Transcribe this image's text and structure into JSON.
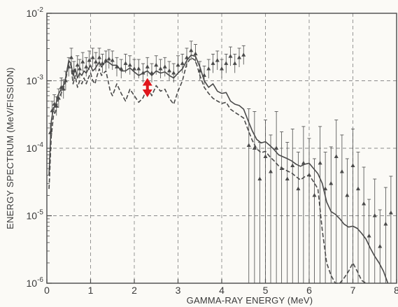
{
  "chart_data": {
    "type": "line",
    "title": "",
    "xlabel": "GAMMA-RAY ENERGY (MeV)",
    "ylabel": "ENERGY SPECTRUM (MeV/FISSION)",
    "xlim": [
      0,
      8
    ],
    "ylim": [
      1e-06,
      0.01
    ],
    "yscale": "log",
    "grid": true,
    "x_ticks": [
      "0",
      "1",
      "2",
      "3",
      "4",
      "5",
      "6",
      "7",
      "8"
    ],
    "y_ticks": [
      {
        "base": "10",
        "exp": "-6",
        "value": 1e-06
      },
      {
        "base": "10",
        "exp": "-5",
        "value": 1e-05
      },
      {
        "base": "10",
        "exp": "-4",
        "value": 0.0001
      },
      {
        "base": "10",
        "exp": "-3",
        "value": 0.001
      },
      {
        "base": "10",
        "exp": "-2",
        "value": 0.01
      }
    ],
    "colors": {
      "axis": "#4a4a4a",
      "grid": "#8a8a8a",
      "series": "#4a4a4a",
      "arrow": "#e0161c"
    },
    "series": [
      {
        "style": "solid",
        "x": [
          0.05,
          0.1,
          0.15,
          0.2,
          0.25,
          0.3,
          0.35,
          0.4,
          0.45,
          0.5,
          0.55,
          0.6,
          0.65,
          0.7,
          0.75,
          0.8,
          0.85,
          0.9,
          0.95,
          1.0,
          1.05,
          1.1,
          1.15,
          1.2,
          1.25,
          1.3,
          1.35,
          1.4,
          1.45,
          1.5,
          1.6,
          1.7,
          1.8,
          1.9,
          2.0,
          2.1,
          2.2,
          2.3,
          2.4,
          2.5,
          2.6,
          2.7,
          2.8,
          2.9,
          3.0,
          3.1,
          3.2,
          3.3,
          3.4,
          3.5,
          3.6,
          3.7,
          3.8,
          3.9,
          4.0,
          4.1,
          4.2,
          4.3,
          4.4,
          4.5,
          4.6,
          4.7,
          4.8,
          4.9,
          5.0,
          5.1,
          5.2,
          5.3,
          5.4,
          5.5,
          5.6,
          5.7,
          5.8,
          5.9,
          6.0,
          6.1,
          6.2,
          6.3,
          6.4,
          6.5,
          6.6,
          6.7,
          6.8,
          6.9,
          7.0,
          7.1,
          7.2,
          7.3,
          7.4,
          7.5,
          7.6,
          7.7,
          7.8
        ],
        "y": [
          4e-05,
          0.00025,
          0.0004,
          0.00043,
          0.0006,
          0.0007,
          0.0008,
          0.0009,
          0.0013,
          0.002,
          0.0018,
          0.0012,
          0.0015,
          0.0011,
          0.0013,
          0.0012,
          0.0014,
          0.0013,
          0.0015,
          0.0017,
          0.0014,
          0.0015,
          0.0017,
          0.0019,
          0.0016,
          0.0018,
          0.0019,
          0.0019,
          0.0018,
          0.0017,
          0.0017,
          0.0014,
          0.0014,
          0.00155,
          0.00135,
          0.0012,
          0.0013,
          0.0014,
          0.0012,
          0.0014,
          0.0013,
          0.00135,
          0.0012,
          0.0011,
          0.0013,
          0.0015,
          0.002,
          0.0024,
          0.0023,
          0.0016,
          0.001,
          0.0008,
          0.0009,
          0.0007,
          0.00065,
          0.00067,
          0.0005,
          0.00045,
          0.00043,
          0.00038,
          0.00026,
          0.00018,
          0.000135,
          0.00012,
          0.000125,
          0.00011,
          9.5e-05,
          8e-05,
          7.5e-05,
          7e-05,
          6.5e-05,
          5.8e-05,
          5.4e-05,
          5.8e-05,
          6e-05,
          5e-05,
          4.2e-05,
          3e-05,
          1.6e-05,
          1.15e-05,
          1.05e-05,
          9e-06,
          7.5e-06,
          6.8e-06,
          7e-06,
          6.5e-06,
          5.5e-06,
          4.5e-06,
          3.3e-06,
          2.5e-06,
          2e-06,
          1.5e-06,
          1e-06
        ]
      },
      {
        "style": "dashed",
        "x": [
          0.05,
          0.1,
          0.15,
          0.2,
          0.25,
          0.3,
          0.35,
          0.4,
          0.45,
          0.5,
          0.55,
          0.6,
          0.65,
          0.7,
          0.75,
          0.8,
          0.85,
          0.9,
          0.95,
          1.0,
          1.05,
          1.1,
          1.15,
          1.2,
          1.25,
          1.3,
          1.35,
          1.4,
          1.45,
          1.5,
          1.6,
          1.7,
          1.8,
          1.9,
          2.0,
          2.1,
          2.2,
          2.3,
          2.4,
          2.5,
          2.6,
          2.7,
          2.8,
          2.9,
          3.0,
          3.1,
          3.2,
          3.3,
          3.4,
          3.5,
          3.6,
          3.7,
          3.8,
          3.9,
          4.0,
          4.1,
          4.2,
          4.3,
          4.4,
          4.5,
          4.6,
          4.7,
          4.8,
          4.9,
          5.0,
          5.1,
          5.2,
          5.3,
          5.4,
          5.5,
          5.6,
          5.7,
          5.8,
          5.9,
          6.0,
          6.1,
          6.2,
          6.3,
          6.4,
          6.5,
          6.6,
          6.7,
          6.8,
          6.9,
          7.0,
          7.1,
          7.2,
          7.3
        ],
        "y": [
          2.5e-05,
          0.00015,
          0.0003,
          0.00035,
          0.0005,
          0.0006,
          0.0007,
          0.00085,
          0.0012,
          0.0019,
          0.0017,
          0.0009,
          0.0012,
          0.0008,
          0.001,
          0.0009,
          0.0011,
          0.0009,
          0.0011,
          0.0013,
          0.001,
          0.0009,
          0.0012,
          0.0015,
          0.0012,
          0.0013,
          0.0014,
          0.001,
          0.0007,
          0.0006,
          0.0009,
          0.00065,
          0.0005,
          0.00075,
          0.0006,
          0.00048,
          0.00056,
          0.0008,
          0.0006,
          0.00085,
          0.0007,
          0.00075,
          0.00055,
          0.00045,
          0.0007,
          0.001,
          0.0018,
          0.0022,
          0.002,
          0.0012,
          0.0008,
          0.00065,
          0.00055,
          0.0005,
          0.00046,
          0.00048,
          0.00038,
          0.00034,
          0.00031,
          0.00028,
          0.00019,
          0.00013,
          9.8e-05,
          8.6e-05,
          9e-05,
          7.5e-05,
          6.5e-05,
          5.5e-05,
          5e-05,
          4.6e-05,
          4.3e-05,
          3.8e-05,
          3.4e-05,
          3.8e-05,
          4e-05,
          3.2e-05,
          2.5e-05,
          6e-06,
          2e-06,
          1.3e-06,
          1e-06,
          1e-06,
          1.2e-06,
          1.5e-06,
          2e-06,
          1.5e-06,
          1.1e-06,
          1e-06
        ]
      },
      {
        "style": "points",
        "x": [
          0.08,
          0.12,
          0.17,
          0.22,
          0.27,
          0.33,
          0.38,
          0.43,
          0.5,
          0.56,
          0.62,
          0.7,
          0.75,
          0.82,
          0.9,
          0.97,
          1.05,
          1.12,
          1.2,
          1.27,
          1.35,
          1.42,
          1.5,
          1.6,
          1.7,
          1.8,
          1.9,
          2.0,
          2.1,
          2.2,
          2.3,
          2.4,
          2.5,
          2.6,
          2.7,
          2.8,
          2.9,
          3.0,
          3.1,
          3.2,
          3.3,
          3.4,
          3.5,
          3.6,
          3.7,
          3.8,
          3.9,
          4.0,
          4.1,
          4.2,
          4.3,
          4.4,
          4.5,
          4.62,
          4.75,
          4.87,
          5.0,
          5.12,
          5.25,
          5.37,
          5.5,
          5.62,
          5.75,
          5.87,
          6.0,
          6.12,
          6.25,
          6.37,
          6.5,
          6.62,
          6.75,
          6.87,
          7.0,
          7.12,
          7.25,
          7.37,
          7.5,
          7.62,
          7.75,
          7.87
        ],
        "y": [
          0.00017,
          0.00036,
          0.00045,
          0.00042,
          0.00055,
          0.0008,
          0.00075,
          0.001,
          0.0016,
          0.0022,
          0.0014,
          0.0017,
          0.0015,
          0.0019,
          0.0016,
          0.002,
          0.0022,
          0.0019,
          0.0022,
          0.0018,
          0.002,
          0.0021,
          0.002,
          0.0016,
          0.0015,
          0.0018,
          0.0017,
          0.0015,
          0.0015,
          0.0013,
          0.0016,
          0.0013,
          0.0017,
          0.0015,
          0.0016,
          0.0014,
          0.0013,
          0.0017,
          0.0018,
          0.0022,
          0.0028,
          0.0025,
          0.0014,
          0.0012,
          0.0015,
          0.0018,
          0.002,
          0.0015,
          0.0018,
          0.0023,
          0.0018,
          0.0022,
          0.0024,
          0.00011,
          0.0001,
          3.5e-05,
          7.5e-05,
          4.5e-05,
          0.0001,
          5e-05,
          3.5e-05,
          5.5e-05,
          2.5e-05,
          6e-05,
          4e-05,
          2e-05,
          6e-05,
          2.5e-05,
          3e-05,
          7.5e-05,
          4.5e-05,
          2e-05,
          5.5e-05,
          2.5e-05,
          1.5e-05,
          5e-06,
          1e-05,
          3.5e-06,
          7.5e-06,
          1.1e-05
        ]
      }
    ],
    "annotations": [
      {
        "type": "double-arrow",
        "x": 2.3,
        "y1": 0.0011,
        "y2": 0.00057,
        "color": "#e0161c"
      }
    ]
  }
}
